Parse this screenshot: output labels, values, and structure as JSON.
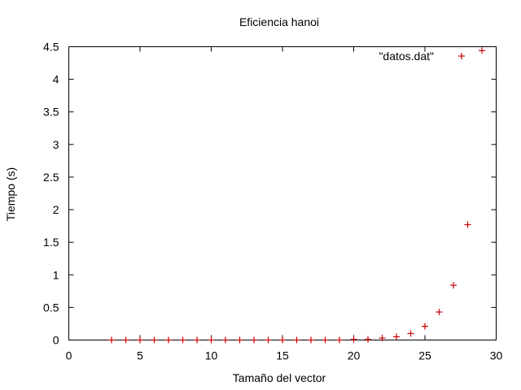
{
  "chart_data": {
    "type": "scatter",
    "title": "Eficiencia hanoi",
    "xlabel": "Tamaño del vector",
    "ylabel": "Tiempo (s)",
    "xlim": [
      0,
      30
    ],
    "ylim": [
      0,
      4.5
    ],
    "xticks": [
      "0",
      "5",
      "10",
      "15",
      "20",
      "25",
      "30"
    ],
    "yticks": [
      "0",
      "0.5",
      "1",
      "1.5",
      "2",
      "2.5",
      "3",
      "3.5",
      "4",
      "4.5"
    ],
    "grid": false,
    "legend_position": "top-right",
    "series": [
      {
        "name": "\"datos.dat\"",
        "color": "#cc0000",
        "marker": "plus",
        "x": [
          3,
          4,
          5,
          6,
          7,
          8,
          9,
          10,
          11,
          12,
          13,
          14,
          15,
          16,
          17,
          18,
          19,
          20,
          21,
          22,
          23,
          24,
          25,
          26,
          27,
          28,
          29
        ],
        "y": [
          0,
          0,
          0,
          0,
          0,
          0,
          0,
          0,
          0,
          0,
          0,
          0,
          0,
          0,
          0,
          0,
          0,
          0.01,
          0.01,
          0.03,
          0.05,
          0.1,
          0.21,
          0.43,
          0.84,
          1.77,
          4.44
        ]
      }
    ]
  }
}
